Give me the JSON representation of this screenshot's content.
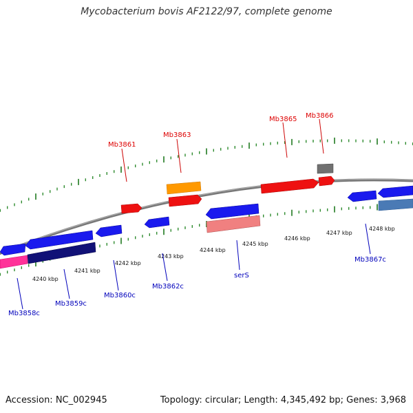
{
  "title": "Mycobacterium bovis AF2122/97, complete genome",
  "footer": {
    "accession": "Accession: NC_002945",
    "topology": "Topology: circular; Length: 4,345,492 bp; Genes: 3,968"
  },
  "colors": {
    "backbone": "#888888",
    "tick": "#2e8b2e",
    "forward_label": "#dd0000",
    "reverse_label": "#0000bb"
  },
  "kbp_labels": [
    "4240 kbp",
    "4241 kbp",
    "4242 kbp",
    "4243 kbp",
    "4244 kbp",
    "4245 kbp",
    "4246 kbp",
    "4247 kbp",
    "4248 kbp"
  ],
  "forward_genes": [
    "Mb3861",
    "Mb3863",
    "Mb3865",
    "Mb3866"
  ],
  "reverse_genes": [
    "Mb3858c",
    "Mb3859c",
    "Mb3860c",
    "Mb3862c",
    "serS",
    "Mb3867c"
  ]
}
